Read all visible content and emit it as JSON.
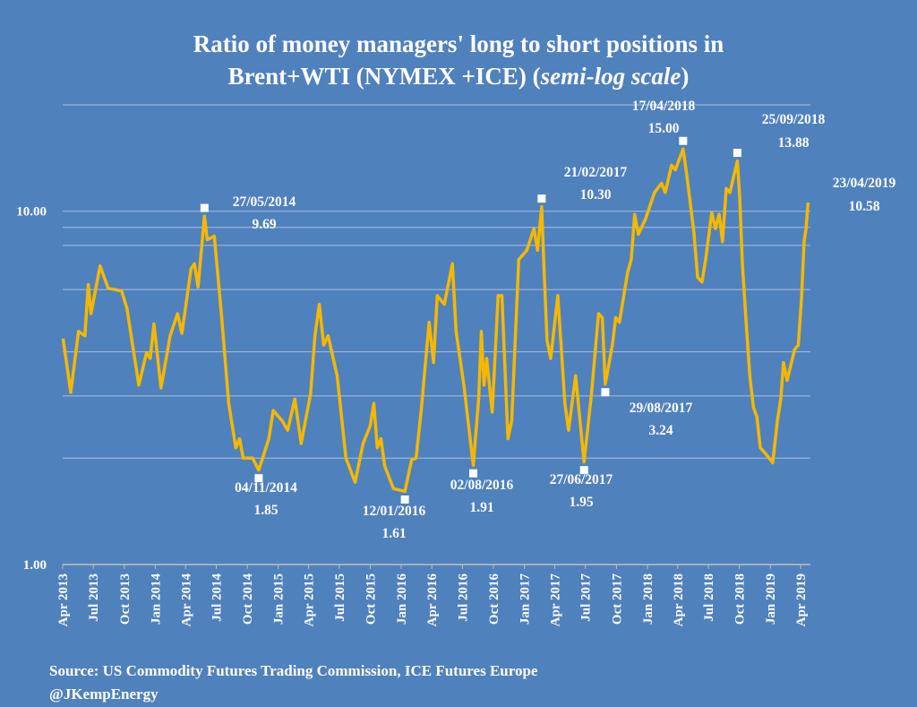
{
  "chart_data": {
    "type": "line",
    "title": [
      "Ratio of money managers' long to short positions in",
      "Brent+WTI (NYMEX +ICE) (",
      "semi-log scale",
      ")"
    ],
    "source": [
      "Source: US Commodity Futures Trading Commission, ICE Futures Europe",
      "@JKempEnergy"
    ],
    "log_y": true,
    "ylim": [
      1,
      20
    ],
    "yticks": [
      {
        "value": 1,
        "label": "1.00"
      },
      {
        "value": 10,
        "label": "10.00"
      }
    ],
    "ygrid": [
      2,
      3,
      4,
      6,
      8,
      9,
      10,
      20
    ],
    "xlim": [
      "2013-04-01",
      "2019-04-30"
    ],
    "xticks": [
      {
        "value": "2013-04",
        "label": "Apr 2013"
      },
      {
        "value": "2013-07",
        "label": "Jul 2013"
      },
      {
        "value": "2013-10",
        "label": "Oct 2013"
      },
      {
        "value": "2014-01",
        "label": "Jan 2014"
      },
      {
        "value": "2014-04",
        "label": "Apr 2014"
      },
      {
        "value": "2014-07",
        "label": "Jul 2014"
      },
      {
        "value": "2014-10",
        "label": "Oct 2014"
      },
      {
        "value": "2015-01",
        "label": "Jan 2015"
      },
      {
        "value": "2015-04",
        "label": "Apr 2015"
      },
      {
        "value": "2015-07",
        "label": "Jul 2015"
      },
      {
        "value": "2015-10",
        "label": "Oct 2015"
      },
      {
        "value": "2016-01",
        "label": "Jan 2016"
      },
      {
        "value": "2016-04",
        "label": "Apr 2016"
      },
      {
        "value": "2016-07",
        "label": "Jul 2016"
      },
      {
        "value": "2016-10",
        "label": "Oct 2016"
      },
      {
        "value": "2017-01",
        "label": "Jan 2017"
      },
      {
        "value": "2017-04",
        "label": "Apr 2017"
      },
      {
        "value": "2017-07",
        "label": "Jul 2017"
      },
      {
        "value": "2017-10",
        "label": "Oct 2017"
      },
      {
        "value": "2018-01",
        "label": "Jan 2018"
      },
      {
        "value": "2018-04",
        "label": "Apr 2018"
      },
      {
        "value": "2018-07",
        "label": "Jul 2018"
      },
      {
        "value": "2018-10",
        "label": "Oct 2018"
      },
      {
        "value": "2019-01",
        "label": "Jan 2019"
      },
      {
        "value": "2019-04",
        "label": "Apr 2019"
      }
    ],
    "x": [
      "2013-04-02",
      "2013-04-25",
      "2013-05-18",
      "2013-06-06",
      "2013-06-16",
      "2013-06-24",
      "2013-07-21",
      "2013-08-14",
      "2013-09-23",
      "2013-10-09",
      "2013-11-13",
      "2013-12-06",
      "2013-12-17",
      "2013-12-28",
      "2014-01-18",
      "2014-02-14",
      "2014-03-08",
      "2014-03-21",
      "2014-04-17",
      "2014-04-27",
      "2014-05-08",
      "2014-05-27",
      "2014-06-04",
      "2014-06-25",
      "2014-07-16",
      "2014-08-07",
      "2014-08-28",
      "2014-09-08",
      "2014-09-19",
      "2014-10-17",
      "2014-11-04",
      "2014-12-04",
      "2014-12-17",
      "2015-01-13",
      "2015-01-29",
      "2015-02-19",
      "2015-03-10",
      "2015-04-07",
      "2015-04-20",
      "2015-05-03",
      "2015-05-16",
      "2015-05-29",
      "2015-06-25",
      "2015-07-21",
      "2015-08-17",
      "2015-09-10",
      "2015-10-01",
      "2015-10-12",
      "2015-10-22",
      "2015-11-02",
      "2015-11-13",
      "2015-12-09",
      "2016-01-12",
      "2016-02-01",
      "2016-02-14",
      "2016-02-29",
      "2016-03-24",
      "2016-04-06",
      "2016-04-17",
      "2016-05-08",
      "2016-06-01",
      "2016-06-12",
      "2016-07-05",
      "2016-08-02",
      "2016-08-18",
      "2016-08-26",
      "2016-09-03",
      "2016-09-11",
      "2016-09-27",
      "2016-10-15",
      "2016-10-26",
      "2016-11-13",
      "2016-11-24",
      "2016-12-15",
      "2017-01-08",
      "2017-01-29",
      "2017-02-09",
      "2017-02-21",
      "2017-02-28",
      "2017-03-09",
      "2017-03-20",
      "2017-04-10",
      "2017-05-01",
      "2017-05-12",
      "2017-06-02",
      "2017-06-27",
      "2017-07-19",
      "2017-08-09",
      "2017-08-20",
      "2017-08-29",
      "2017-09-19",
      "2017-09-29",
      "2017-10-10",
      "2017-11-03",
      "2017-11-14",
      "2017-11-24",
      "2017-12-05",
      "2017-12-26",
      "2018-01-22",
      "2018-02-12",
      "2018-02-23",
      "2018-03-14",
      "2018-03-25",
      "2018-04-17",
      "2018-04-28",
      "2018-05-19",
      "2018-05-30",
      "2018-06-12",
      "2018-06-23",
      "2018-07-11",
      "2018-07-22",
      "2018-08-02",
      "2018-08-12",
      "2018-08-23",
      "2018-09-03",
      "2018-09-25",
      "2018-10-02",
      "2018-10-10",
      "2018-10-21",
      "2018-11-01",
      "2018-11-12",
      "2018-11-22",
      "2018-12-02",
      "2018-12-16",
      "2019-01-08",
      "2019-01-22",
      "2019-02-01",
      "2019-02-09",
      "2019-02-20",
      "2019-03-14",
      "2019-03-25",
      "2019-04-04",
      "2019-04-11",
      "2019-04-17",
      "2019-04-23"
    ],
    "series": [
      {
        "color": "#f5b800",
        "values": [
          4.36,
          3.07,
          4.57,
          4.44,
          6.2,
          5.13,
          7.0,
          6.05,
          5.95,
          5.3,
          3.22,
          3.98,
          3.83,
          4.8,
          3.16,
          4.44,
          5.13,
          4.51,
          6.87,
          7.1,
          6.1,
          9.69,
          8.3,
          8.5,
          5.13,
          2.86,
          2.14,
          2.27,
          2.0,
          2.0,
          1.85,
          2.27,
          2.73,
          2.55,
          2.4,
          2.94,
          2.2,
          3.04,
          4.44,
          5.45,
          4.18,
          4.44,
          3.42,
          2.0,
          1.71,
          2.2,
          2.47,
          2.86,
          2.14,
          2.27,
          1.9,
          1.64,
          1.61,
          1.98,
          2.0,
          2.7,
          4.85,
          3.73,
          5.77,
          5.45,
          7.1,
          4.57,
          3.22,
          1.91,
          2.94,
          4.57,
          3.22,
          3.83,
          2.7,
          5.77,
          5.77,
          2.27,
          2.55,
          7.3,
          7.75,
          8.93,
          7.75,
          10.3,
          6.87,
          4.31,
          3.83,
          5.77,
          2.86,
          2.4,
          3.42,
          1.95,
          3.04,
          5.13,
          5.0,
          3.24,
          4.18,
          5.0,
          4.85,
          6.7,
          7.3,
          9.8,
          8.6,
          9.48,
          11.3,
          12.0,
          11.3,
          13.5,
          13.1,
          15.0,
          12.6,
          8.7,
          6.5,
          6.3,
          7.3,
          9.9,
          8.93,
          9.8,
          8.2,
          11.6,
          11.3,
          13.88,
          11.0,
          7.1,
          4.85,
          3.42,
          2.78,
          2.62,
          2.14,
          2.07,
          1.94,
          2.55,
          2.94,
          3.73,
          3.32,
          4.06,
          4.18,
          5.77,
          8.2,
          8.93,
          10.58
        ]
      }
    ],
    "annotations": [
      {
        "x": "2014-05-27",
        "value": 9.69,
        "date_label": "27/05/2014",
        "value_label": "9.69"
      },
      {
        "x": "2014-11-04",
        "value": 1.85,
        "date_label": "04/11/2014",
        "value_label": "1.85"
      },
      {
        "x": "2016-01-12",
        "value": 1.61,
        "date_label": "12/01/2016",
        "value_label": "1.61"
      },
      {
        "x": "2016-08-02",
        "value": 1.91,
        "date_label": "02/08/2016",
        "value_label": "1.91"
      },
      {
        "x": "2017-06-27",
        "value": 1.95,
        "date_label": "27/06/2017",
        "value_label": "1.95"
      },
      {
        "x": "2017-08-29",
        "value": 3.24,
        "date_label": "29/08/2017",
        "value_label": "3.24"
      },
      {
        "x": "2017-02-21",
        "value": 10.3,
        "date_label": "21/02/2017",
        "value_label": "10.30"
      },
      {
        "x": "2018-04-17",
        "value": 15,
        "date_label": "17/04/2018",
        "value_label": "15.00"
      },
      {
        "x": "2018-09-25",
        "value": 13.88,
        "date_label": "25/09/2018",
        "value_label": "13.88"
      },
      {
        "x": "2019-04-23",
        "value": 10.58,
        "date_label": "23/04/2019",
        "value_label": "10.58"
      }
    ]
  }
}
